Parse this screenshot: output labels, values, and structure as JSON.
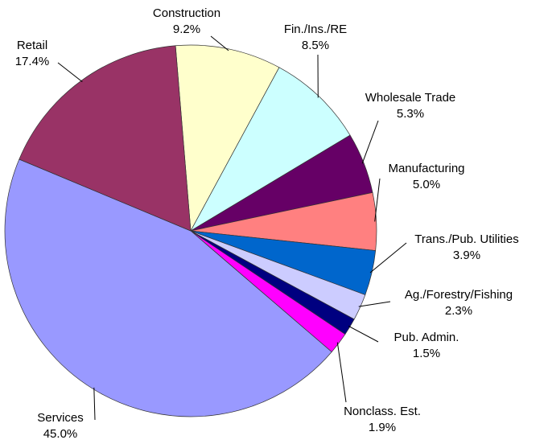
{
  "chart_data": {
    "type": "pie",
    "categories": [
      "Construction",
      "Fin./Ins./RE",
      "Wholesale Trade",
      "Manufacturing",
      "Trans./Pub. Utilities",
      "Ag./Forestry/Fishing",
      "Pub. Admin.",
      "Nonclass. Est.",
      "Services",
      "Retail"
    ],
    "values": [
      9.2,
      8.5,
      5.3,
      5.0,
      3.9,
      2.3,
      1.5,
      1.9,
      45.0,
      17.4
    ],
    "value_labels": [
      "9.2%",
      "8.5%",
      "5.3%",
      "5.0%",
      "3.9%",
      "2.3%",
      "1.5%",
      "1.9%",
      "45.0%",
      "17.4%"
    ],
    "colors": [
      "#ffffcc",
      "#ccffff",
      "#660066",
      "#ff8080",
      "#0066cc",
      "#ccccff",
      "#000080",
      "#ff00ff",
      "#9999ff",
      "#993366"
    ]
  }
}
